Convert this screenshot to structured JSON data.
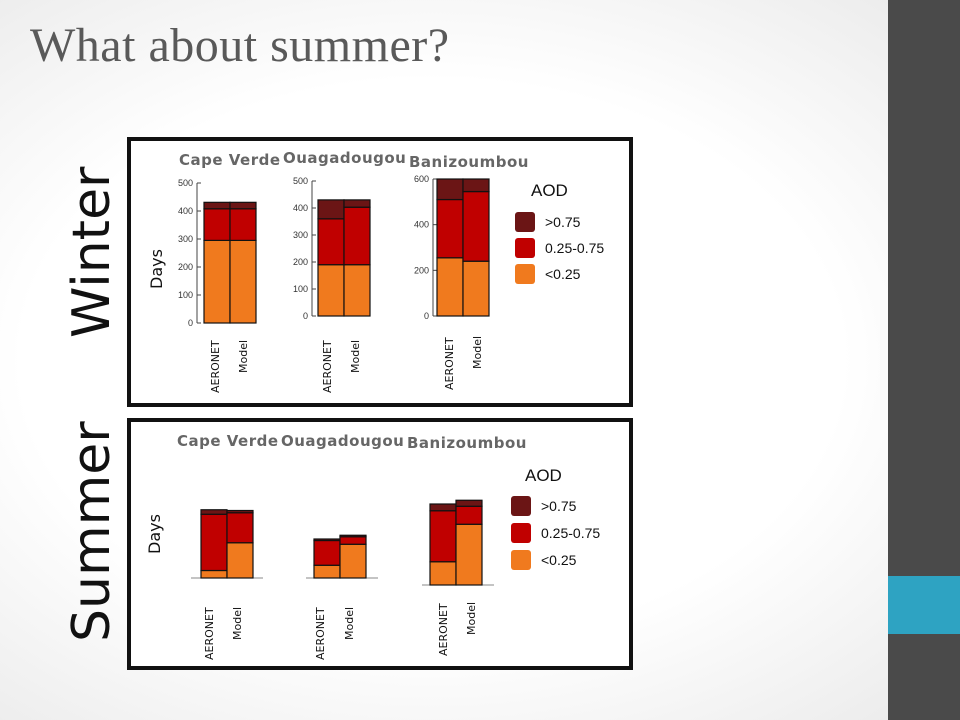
{
  "title": "What about summer?",
  "seasons": {
    "winter": "Winter",
    "summer": "Summer"
  },
  "colors": {
    "high": "#6b1515",
    "mid": "#c00000",
    "low": "#f07a1e",
    "sidebar": "#4a4a4a",
    "accent": "#2ea3c2"
  },
  "legend": {
    "title": "AOD",
    "items": [
      {
        "label": ">0.75",
        "color": "#6b1515"
      },
      {
        "label": "0.25-0.75",
        "color": "#c00000"
      },
      {
        "label": "<0.25",
        "color": "#f07a1e"
      }
    ]
  },
  "chart_data": [
    {
      "type": "bar",
      "stacked": true,
      "season": "Winter",
      "ylabel": "Days",
      "categories": [
        "AERONET",
        "Model"
      ],
      "sites": [
        {
          "name": "Cape Verde",
          "ylim": [
            0,
            500
          ],
          "ticks": [
            "500",
            "400",
            "300",
            "200",
            "100",
            "0"
          ],
          "series": [
            {
              "name": "<0.25",
              "values": [
                295,
                295
              ]
            },
            {
              "name": "0.25-0.75",
              "values": [
                113,
                113
              ]
            },
            {
              "name": ">0.75",
              "values": [
                23,
                23
              ]
            }
          ]
        },
        {
          "name": "Ouagadougou",
          "ylim": [
            0,
            500
          ],
          "ticks": [
            "500",
            "400",
            "300",
            "200",
            "100",
            "0"
          ],
          "series": [
            {
              "name": "<0.25",
              "values": [
                190,
                190
              ]
            },
            {
              "name": "0.25-0.75",
              "values": [
                170,
                213
              ]
            },
            {
              "name": ">0.75",
              "values": [
                70,
                27
              ]
            }
          ]
        },
        {
          "name": "Banizoumbou",
          "ylim": [
            0,
            600
          ],
          "ticks": [
            "600",
            "400",
            "200",
            "0"
          ],
          "series": [
            {
              "name": "<0.25",
              "values": [
                255,
                240
              ]
            },
            {
              "name": "0.25-0.75",
              "values": [
                255,
                305
              ]
            },
            {
              "name": ">0.75",
              "values": [
                90,
                55
              ]
            }
          ]
        }
      ]
    },
    {
      "type": "bar",
      "stacked": true,
      "season": "Summer",
      "ylabel": "Days",
      "categories": [
        "AERONET",
        "Model"
      ],
      "sites": [
        {
          "name": "Cape Verde",
          "series": [
            {
              "name": "<0.25",
              "values": [
                10,
                47
              ]
            },
            {
              "name": "0.25-0.75",
              "values": [
                75,
                40
              ]
            },
            {
              "name": ">0.75",
              "values": [
                6,
                3
              ]
            }
          ]
        },
        {
          "name": "Ouagadougou",
          "series": [
            {
              "name": "<0.25",
              "values": [
                17,
                45
              ]
            },
            {
              "name": "0.25-0.75",
              "values": [
                33,
                10
              ]
            },
            {
              "name": ">0.75",
              "values": [
                2,
                2
              ]
            }
          ]
        },
        {
          "name": "Banizoumbou",
          "series": [
            {
              "name": "<0.25",
              "values": [
                31,
                81
              ]
            },
            {
              "name": "0.25-0.75",
              "values": [
                68,
                24
              ]
            },
            {
              "name": ">0.75",
              "values": [
                9,
                8
              ]
            }
          ]
        }
      ]
    }
  ]
}
